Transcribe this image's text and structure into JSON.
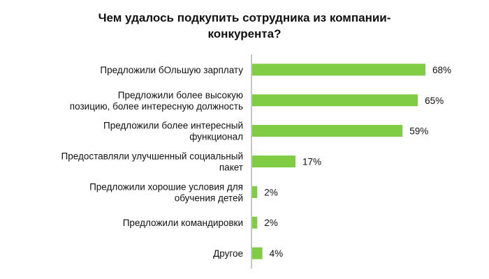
{
  "chart_data": {
    "type": "bar",
    "orientation": "horizontal",
    "title": "Чем удалось подкупить сотрудника из компании-конкурента?",
    "categories": [
      "Предложили бОльшую зарплату",
      "Предложили более высокую позицию, более интересную должность",
      "Предложили более интересный функционал",
      "Предоставляли улучшенный социальный пакет",
      "Предложили хорошие условия для обучения детей",
      "Предложили командировки",
      "Другое"
    ],
    "category_lines": [
      [
        "Предложили бОльшую зарплату"
      ],
      [
        "Предложили более высокую",
        "позицию, более интересную должность"
      ],
      [
        "Предложили более интересный",
        "функционал"
      ],
      [
        "Предоставляли улучшенный социальный",
        "пакет"
      ],
      [
        "Предложили хорошие условия для",
        "обучения детей"
      ],
      [
        "Предложили командировки"
      ],
      [
        "Другое"
      ]
    ],
    "values": [
      68,
      65,
      59,
      17,
      2,
      2,
      4
    ],
    "value_labels": [
      "68%",
      "65%",
      "59%",
      "17%",
      "2%",
      "2%",
      "4%"
    ],
    "unit": "%",
    "xlim": [
      0,
      100
    ],
    "bar_color": "#80CC44",
    "axis_color": "#888888",
    "grid": false,
    "legend": "none"
  }
}
